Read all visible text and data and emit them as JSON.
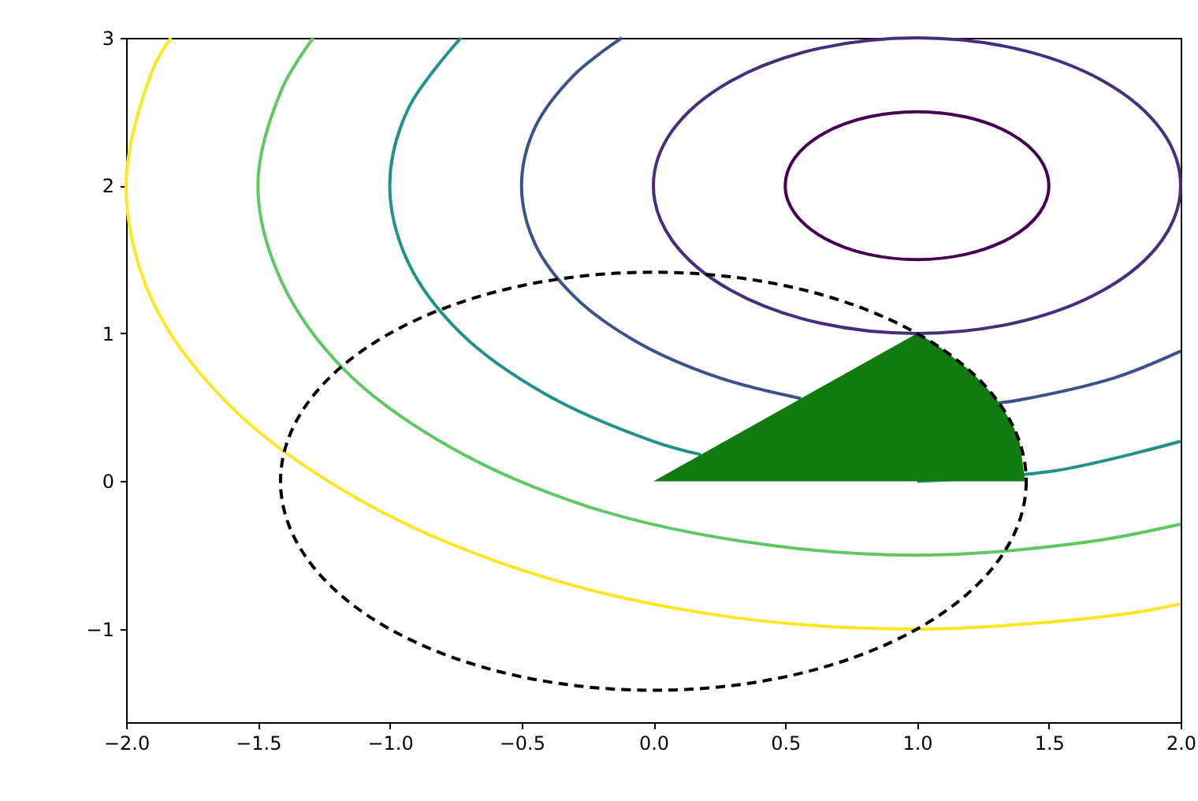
{
  "chart_data": {
    "type": "line",
    "xlim": [
      -2,
      2
    ],
    "ylim": [
      -1.63,
      3
    ],
    "xticks": [
      {
        "value": -2,
        "label": "−2.0"
      },
      {
        "value": -1.5,
        "label": "−1.5"
      },
      {
        "value": -1,
        "label": "−1.0"
      },
      {
        "value": -0.5,
        "label": "−0.5"
      },
      {
        "value": 0,
        "label": "0.0"
      },
      {
        "value": 0.5,
        "label": "0.5"
      },
      {
        "value": 1,
        "label": "1.0"
      },
      {
        "value": 1.5,
        "label": "1.5"
      },
      {
        "value": 2,
        "label": "2.0"
      }
    ],
    "yticks": [
      {
        "value": -1,
        "label": "−1"
      },
      0,
      1,
      2,
      3
    ],
    "line_style": "solid",
    "series": [
      {
        "color": "#3b528b",
        "x": [
          -0.12,
          -0.3,
          -0.45,
          -0.5,
          -0.45,
          -0.3,
          -0.06,
          0.25,
          0.56,
          1,
          1.31,
          1.39,
          1.75,
          2
        ],
        "values": [
          3,
          2.75,
          2.39,
          2,
          1.61,
          1.25,
          0.94,
          0.7,
          0.56,
          null,
          0.53,
          0.55,
          0.7,
          0.88
        ]
      },
      {
        "color": "#21918c",
        "x": [
          -0.73,
          -0.93,
          -1,
          -0.93,
          -0.73,
          -0.41,
          0,
          0.18,
          0.6,
          1,
          1.52,
          2
        ],
        "values": [
          3,
          2.52,
          2,
          1.48,
          1,
          0.59,
          0.27,
          0.18,
          null,
          0,
          0.07,
          0.27
        ]
      },
      {
        "color": "#5ec962",
        "x": [
          -1.29,
          -1.41,
          -1.5,
          -1.41,
          -1.17,
          -0.77,
          -0.25,
          0.35,
          1,
          1.65,
          2
        ],
        "values": [
          3,
          2.65,
          2,
          1.35,
          0.75,
          0.23,
          -0.17,
          -0.41,
          -0.5,
          -0.41,
          -0.29
        ]
      },
      {
        "color": "#fde725",
        "x": [
          -1.83,
          -1.9,
          -2,
          -1.9,
          -1.6,
          -1.12,
          -0.5,
          0.22,
          1,
          1.78,
          2
        ],
        "values": [
          3,
          2.78,
          2,
          1.22,
          0.5,
          -0.12,
          -0.6,
          -0.9,
          -1,
          -0.9,
          -0.83
        ]
      },
      {
        "type": "area",
        "color": "#117a11",
        "x": [
          0,
          0.5,
          1,
          1.05,
          1.1,
          1.15,
          1.2,
          1.25,
          1.3,
          1.34,
          1.37,
          1.39,
          1.41
        ],
        "values": [
          0,
          0.5,
          1,
          0.95,
          0.89,
          0.82,
          0.75,
          0.66,
          0.56,
          0.45,
          0.35,
          0.26,
          0
        ]
      }
    ]
  }
}
